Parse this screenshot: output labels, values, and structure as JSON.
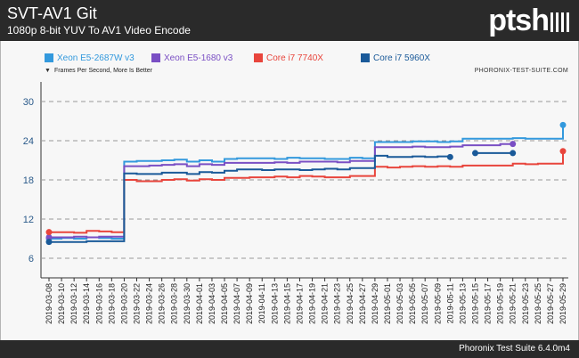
{
  "header": {
    "title": "SVT-AV1 Git",
    "subtitle": "1080p 8-bit YUV To AV1 Video Encode",
    "logo": "ptsh"
  },
  "legend": [
    {
      "name": "Xeon E5-2687W v3",
      "color": "#3399dd"
    },
    {
      "name": "Xeon E5-1680 v3",
      "color": "#7a4fc4"
    },
    {
      "name": "Core i7 7740X",
      "color": "#e8453c"
    },
    {
      "name": "Core i7 5960X",
      "color": "#1a5a99"
    }
  ],
  "unit_note": "Frames Per Second, More Is Better",
  "site": "PHORONIX-TEST-SUITE.COM",
  "footer": "Phoronix Test Suite 6.4.0m4",
  "chart_data": {
    "type": "line",
    "ylim": [
      3,
      33
    ],
    "yticks": [
      6,
      12,
      18,
      24,
      30
    ],
    "grid": true,
    "legend_position": "top",
    "x": [
      "2019-03-08",
      "2019-03-10",
      "2019-03-12",
      "2019-03-14",
      "2019-03-16",
      "2019-03-18",
      "2019-03-20",
      "2019-03-22",
      "2019-03-24",
      "2019-03-26",
      "2019-03-28",
      "2019-03-30",
      "2019-04-01",
      "2019-04-03",
      "2019-04-05",
      "2019-04-07",
      "2019-04-09",
      "2019-04-11",
      "2019-04-13",
      "2019-04-15",
      "2019-04-17",
      "2019-04-19",
      "2019-04-21",
      "2019-04-23",
      "2019-04-25",
      "2019-04-27",
      "2019-04-29",
      "2019-05-01",
      "2019-05-03",
      "2019-05-05",
      "2019-05-07",
      "2019-05-09",
      "2019-05-11",
      "2019-05-13",
      "2019-05-15",
      "2019-05-17",
      "2019-05-19",
      "2019-05-21",
      "2019-05-23",
      "2019-05-25",
      "2019-05-27",
      "2019-05-29"
    ],
    "series": [
      {
        "name": "Xeon E5-2687W v3",
        "values": [
          9.0,
          9.1,
          9.0,
          9.2,
          9.1,
          9.0,
          20.8,
          20.9,
          20.9,
          21.0,
          21.1,
          20.8,
          21.0,
          20.8,
          21.2,
          21.3,
          21.3,
          21.3,
          21.2,
          21.4,
          21.3,
          21.3,
          21.2,
          21.2,
          21.4,
          21.3,
          23.8,
          23.8,
          23.8,
          23.9,
          23.9,
          23.8,
          23.9,
          24.3,
          24.3,
          24.3,
          24.3,
          24.4,
          24.3,
          24.3,
          24.3,
          26.4
        ]
      },
      {
        "name": "Xeon E5-1680 v3",
        "values": [
          9.2,
          9.2,
          9.3,
          9.2,
          9.3,
          9.3,
          20.1,
          20.1,
          20.2,
          20.3,
          20.4,
          20.1,
          20.4,
          20.3,
          20.6,
          20.6,
          20.6,
          20.6,
          20.7,
          20.6,
          20.8,
          20.8,
          20.8,
          20.7,
          20.9,
          20.9,
          23.0,
          23.0,
          23.0,
          23.1,
          23.0,
          23.0,
          23.1,
          23.3,
          23.3,
          23.3,
          23.5,
          23.5,
          null,
          null,
          null,
          null
        ]
      },
      {
        "name": "Core i7 7740X",
        "values": [
          10.0,
          10.0,
          9.9,
          10.2,
          10.1,
          10.0,
          18.0,
          17.8,
          17.8,
          18.0,
          18.1,
          17.9,
          18.1,
          18.0,
          18.3,
          18.3,
          18.4,
          18.4,
          18.5,
          18.4,
          18.6,
          18.5,
          18.4,
          18.4,
          18.6,
          18.6,
          20.0,
          19.9,
          20.0,
          20.1,
          20.0,
          20.1,
          20.0,
          20.2,
          20.2,
          20.2,
          20.2,
          20.5,
          20.4,
          20.5,
          20.5,
          22.4
        ]
      },
      {
        "name": "Core i7 5960X",
        "values": [
          8.5,
          8.5,
          8.5,
          8.6,
          8.6,
          8.6,
          19.0,
          18.9,
          18.9,
          19.1,
          19.1,
          18.9,
          19.2,
          19.1,
          19.4,
          19.6,
          19.6,
          19.5,
          19.6,
          19.6,
          19.5,
          19.6,
          19.7,
          19.6,
          19.8,
          19.8,
          21.7,
          21.5,
          21.5,
          21.6,
          21.5,
          21.6,
          21.5,
          null,
          22.1,
          22.1,
          22.1,
          22.1,
          null,
          null,
          null,
          null
        ]
      }
    ]
  }
}
